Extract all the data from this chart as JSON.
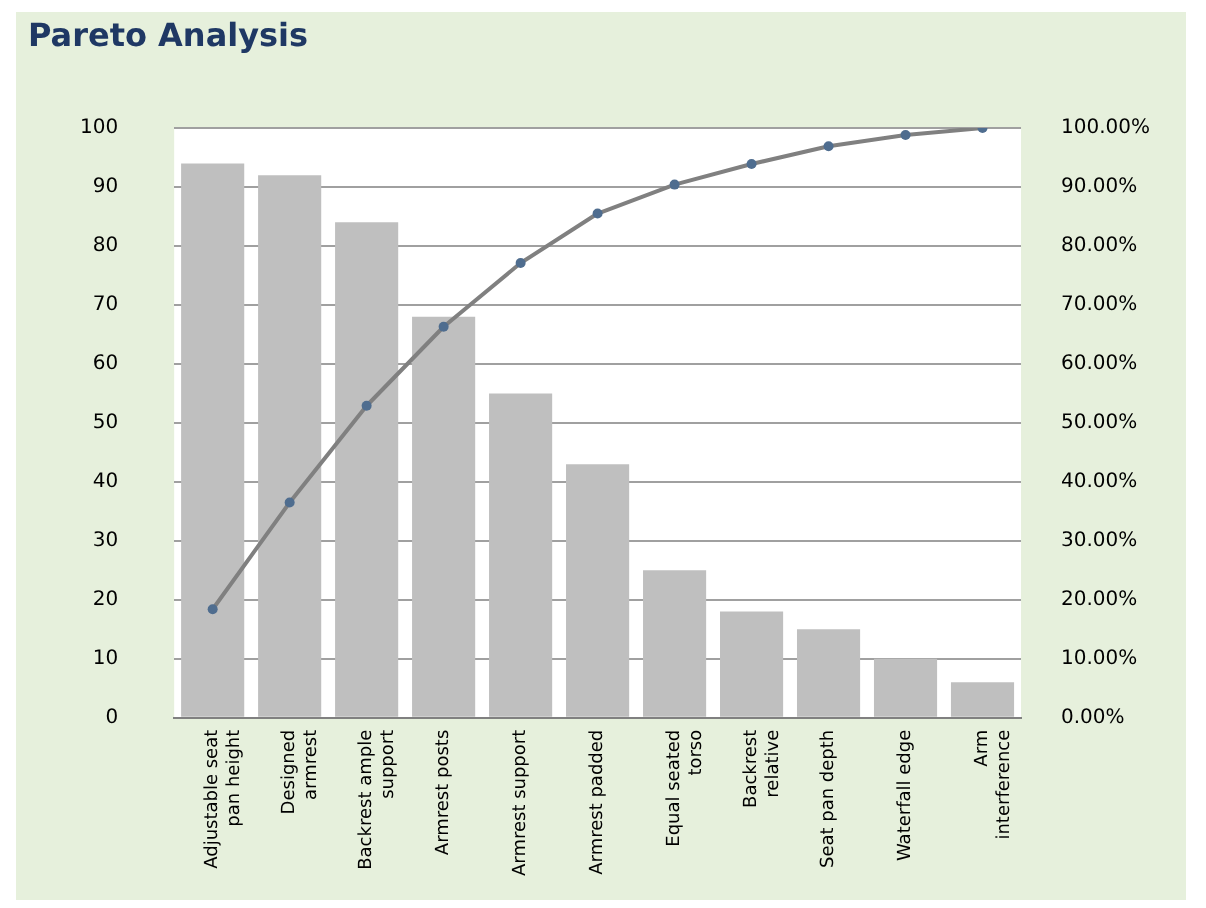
{
  "chart_data": {
    "type": "bar",
    "title": "Pareto Analysis",
    "categories": [
      "Adjustable seat pan height",
      "Designed armrest",
      "Backrest ample support",
      "Armrest posts",
      "Armrest support",
      "Armrest padded",
      "Equal seated torso",
      "Backrest relative",
      "Seat pan depth",
      "Waterfall edge",
      "Arm interference"
    ],
    "series": [
      {
        "color": "#bfbfbf",
        "values": [
          94,
          92,
          84,
          68,
          55,
          43,
          25,
          18,
          15,
          10,
          6
        ]
      },
      {
        "type": "line",
        "axis": "y2",
        "color": "#808080",
        "values": [
          18.4,
          36.5,
          52.9,
          66.3,
          77.1,
          85.5,
          90.4,
          93.9,
          96.9,
          98.8,
          100
        ]
      }
    ],
    "marker": "circle",
    "line_style": "solid",
    "ylim": [
      0,
      100
    ],
    "yticks": [
      0,
      10,
      20,
      30,
      40,
      50,
      60,
      70,
      80,
      90,
      100
    ],
    "y2lim": [
      0,
      100
    ],
    "y2ticks": [
      {
        "value": 0,
        "label": "0.00%"
      },
      {
        "value": 10,
        "label": "10.00%"
      },
      {
        "value": 20,
        "label": "20.00%"
      },
      {
        "value": 30,
        "label": "30.00%"
      },
      {
        "value": 40,
        "label": "40.00%"
      },
      {
        "value": 50,
        "label": "50.00%"
      },
      {
        "value": 60,
        "label": "60.00%"
      },
      {
        "value": 70,
        "label": "70.00%"
      },
      {
        "value": 80,
        "label": "80.00%"
      },
      {
        "value": 90,
        "label": "90.00%"
      },
      {
        "value": 100,
        "label": "100.00%"
      }
    ],
    "grid": "y",
    "legend": false
  }
}
